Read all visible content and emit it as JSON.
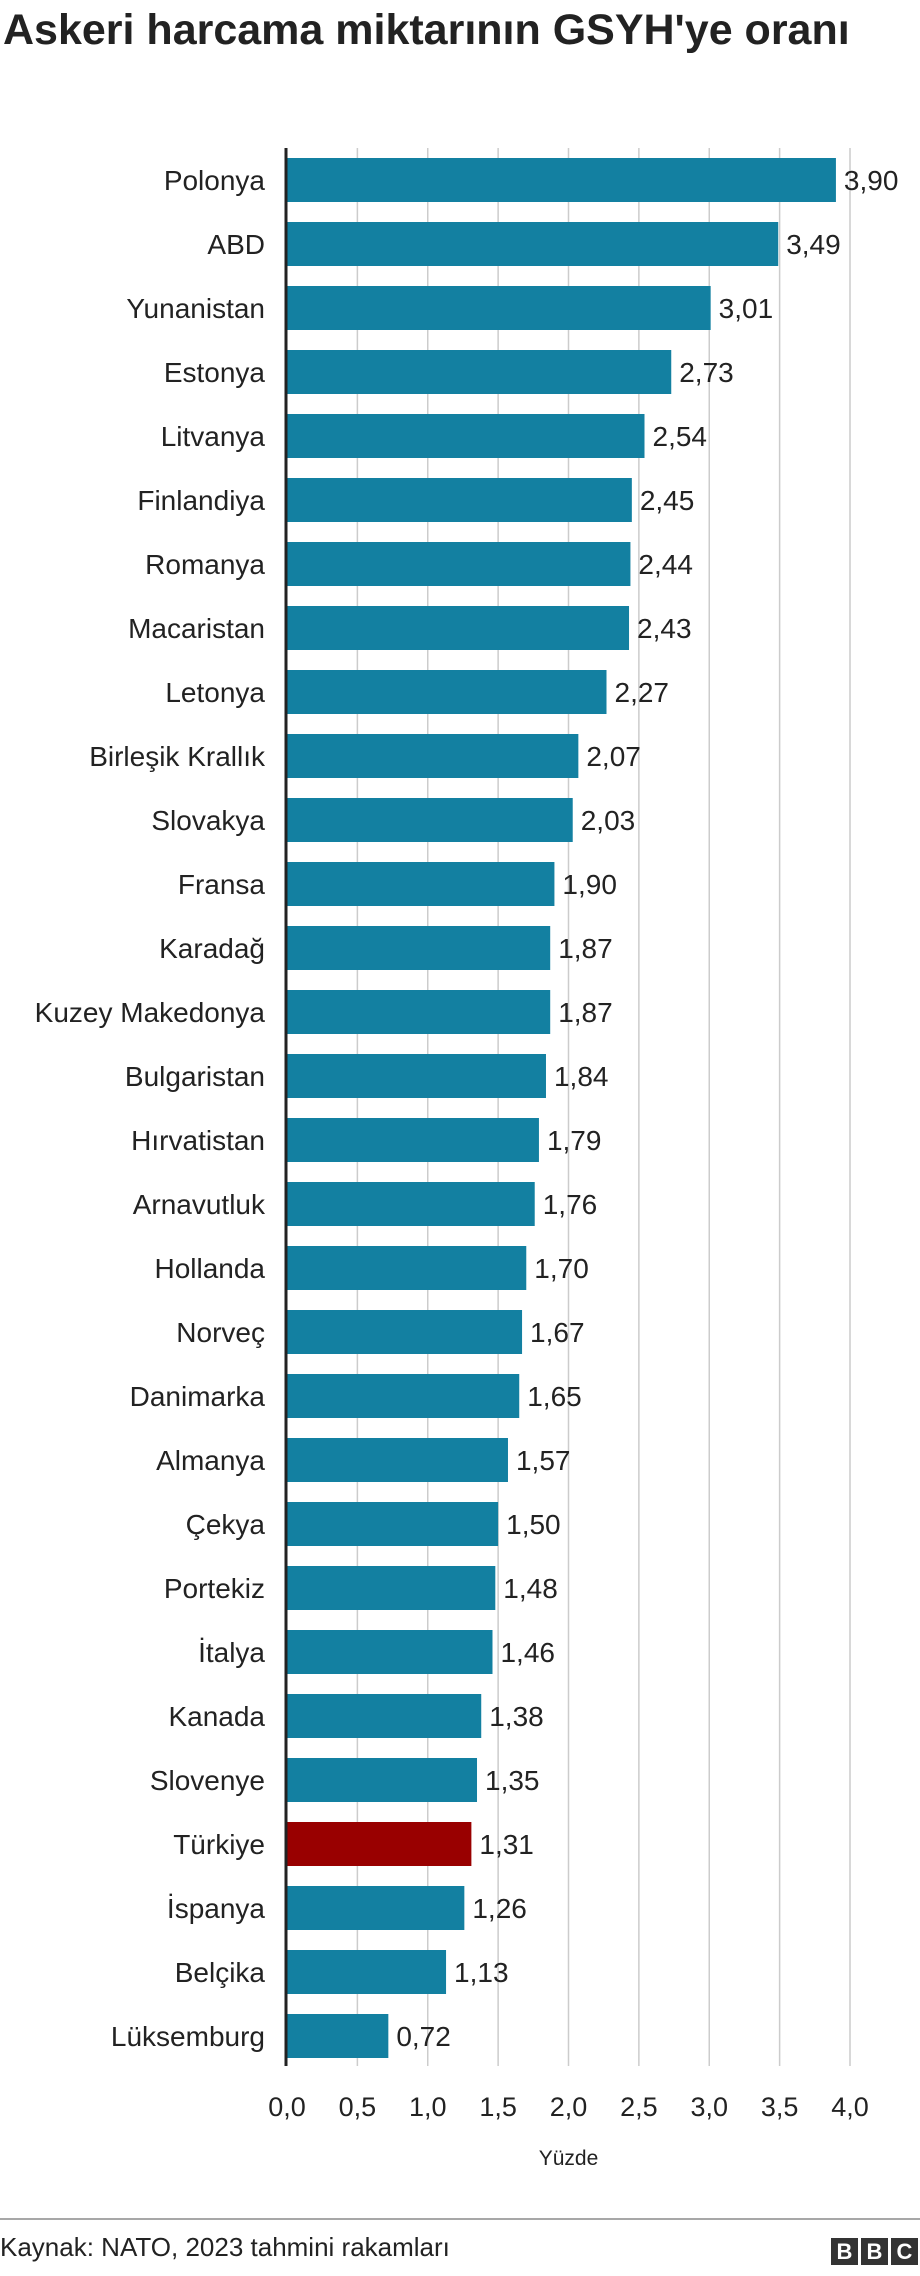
{
  "chart_data": {
    "type": "bar",
    "orientation": "horizontal",
    "title": "Askeri harcama miktarının GSYH'ye oranı",
    "xlabel": "Yüzde",
    "ylabel": "",
    "xlim": [
      0,
      4.0
    ],
    "xticks": [
      0,
      0.5,
      1,
      1.5,
      2,
      2.5,
      3,
      3.5,
      4
    ],
    "xtick_labels": [
      "0,0",
      "0,5",
      "1,0",
      "1,5",
      "2,0",
      "2,5",
      "3,0",
      "3,5",
      "4,0"
    ],
    "grid": true,
    "categories": [
      "Polonya",
      "ABD",
      "Yunanistan",
      "Estonya",
      "Litvanya",
      "Finlandiya",
      "Romanya",
      "Macaristan",
      "Letonya",
      "Birleşik Krallık",
      "Slovakya",
      "Fransa",
      "Karadağ",
      "Kuzey Makedonya",
      "Bulgaristan",
      "Hırvatistan",
      "Arnavutluk",
      "Hollanda",
      "Norveç",
      "Danimarka",
      "Almanya",
      "Çekya",
      "Portekiz",
      "İtalya",
      "Kanada",
      "Slovenye",
      "Türkiye",
      "İspanya",
      "Belçika",
      "Lüksemburg"
    ],
    "values": [
      3.9,
      3.49,
      3.01,
      2.73,
      2.54,
      2.45,
      2.44,
      2.43,
      2.27,
      2.07,
      2.03,
      1.9,
      1.87,
      1.87,
      1.84,
      1.79,
      1.76,
      1.7,
      1.67,
      1.65,
      1.57,
      1.5,
      1.48,
      1.46,
      1.38,
      1.35,
      1.31,
      1.26,
      1.13,
      0.72
    ],
    "value_labels": [
      "3,90",
      "3,49",
      "3,01",
      "2,73",
      "2,54",
      "2,45",
      "2,44",
      "2,43",
      "2,27",
      "2,07",
      "2,03",
      "1,90",
      "1,87",
      "1,87",
      "1,84",
      "1,79",
      "1,76",
      "1,70",
      "1,67",
      "1,65",
      "1,57",
      "1,50",
      "1,48",
      "1,46",
      "1,38",
      "1,35",
      "1,31",
      "1,26",
      "1,13",
      "0,72"
    ],
    "colors": {
      "default": "#1380a1",
      "highlight": "#990000",
      "grid": "#cccccc",
      "baseline": "#222222"
    },
    "highlight": "Türkiye"
  },
  "footer": {
    "source": "Kaynak: NATO, 2023 tahmini rakamları",
    "logo_letters": [
      "B",
      "B",
      "C"
    ]
  }
}
